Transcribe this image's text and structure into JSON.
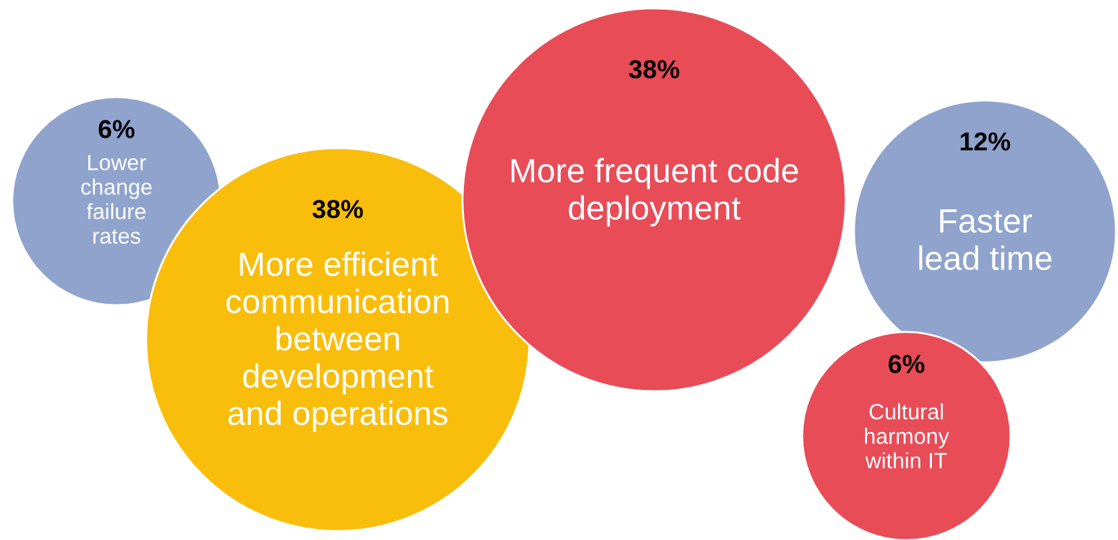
{
  "chart_data": {
    "type": "other",
    "categories": [
      "Lower\nchange\nfailure\nrates",
      "More efficient\ncommunication\nbetween\ndevelopment\nand operations",
      "More frequent code\ndeployment",
      "Faster\nlead time",
      "Cultural\nharmony\nwithin IT"
    ],
    "values": [
      6,
      38,
      38,
      12,
      6
    ],
    "value_labels": [
      "6%",
      "38%",
      "38%",
      "12%",
      "6%"
    ],
    "colors": [
      "#8fa3cd",
      "#f9bd0b",
      "#e84c57",
      "#8fa3cd",
      "#e84c57"
    ]
  }
}
